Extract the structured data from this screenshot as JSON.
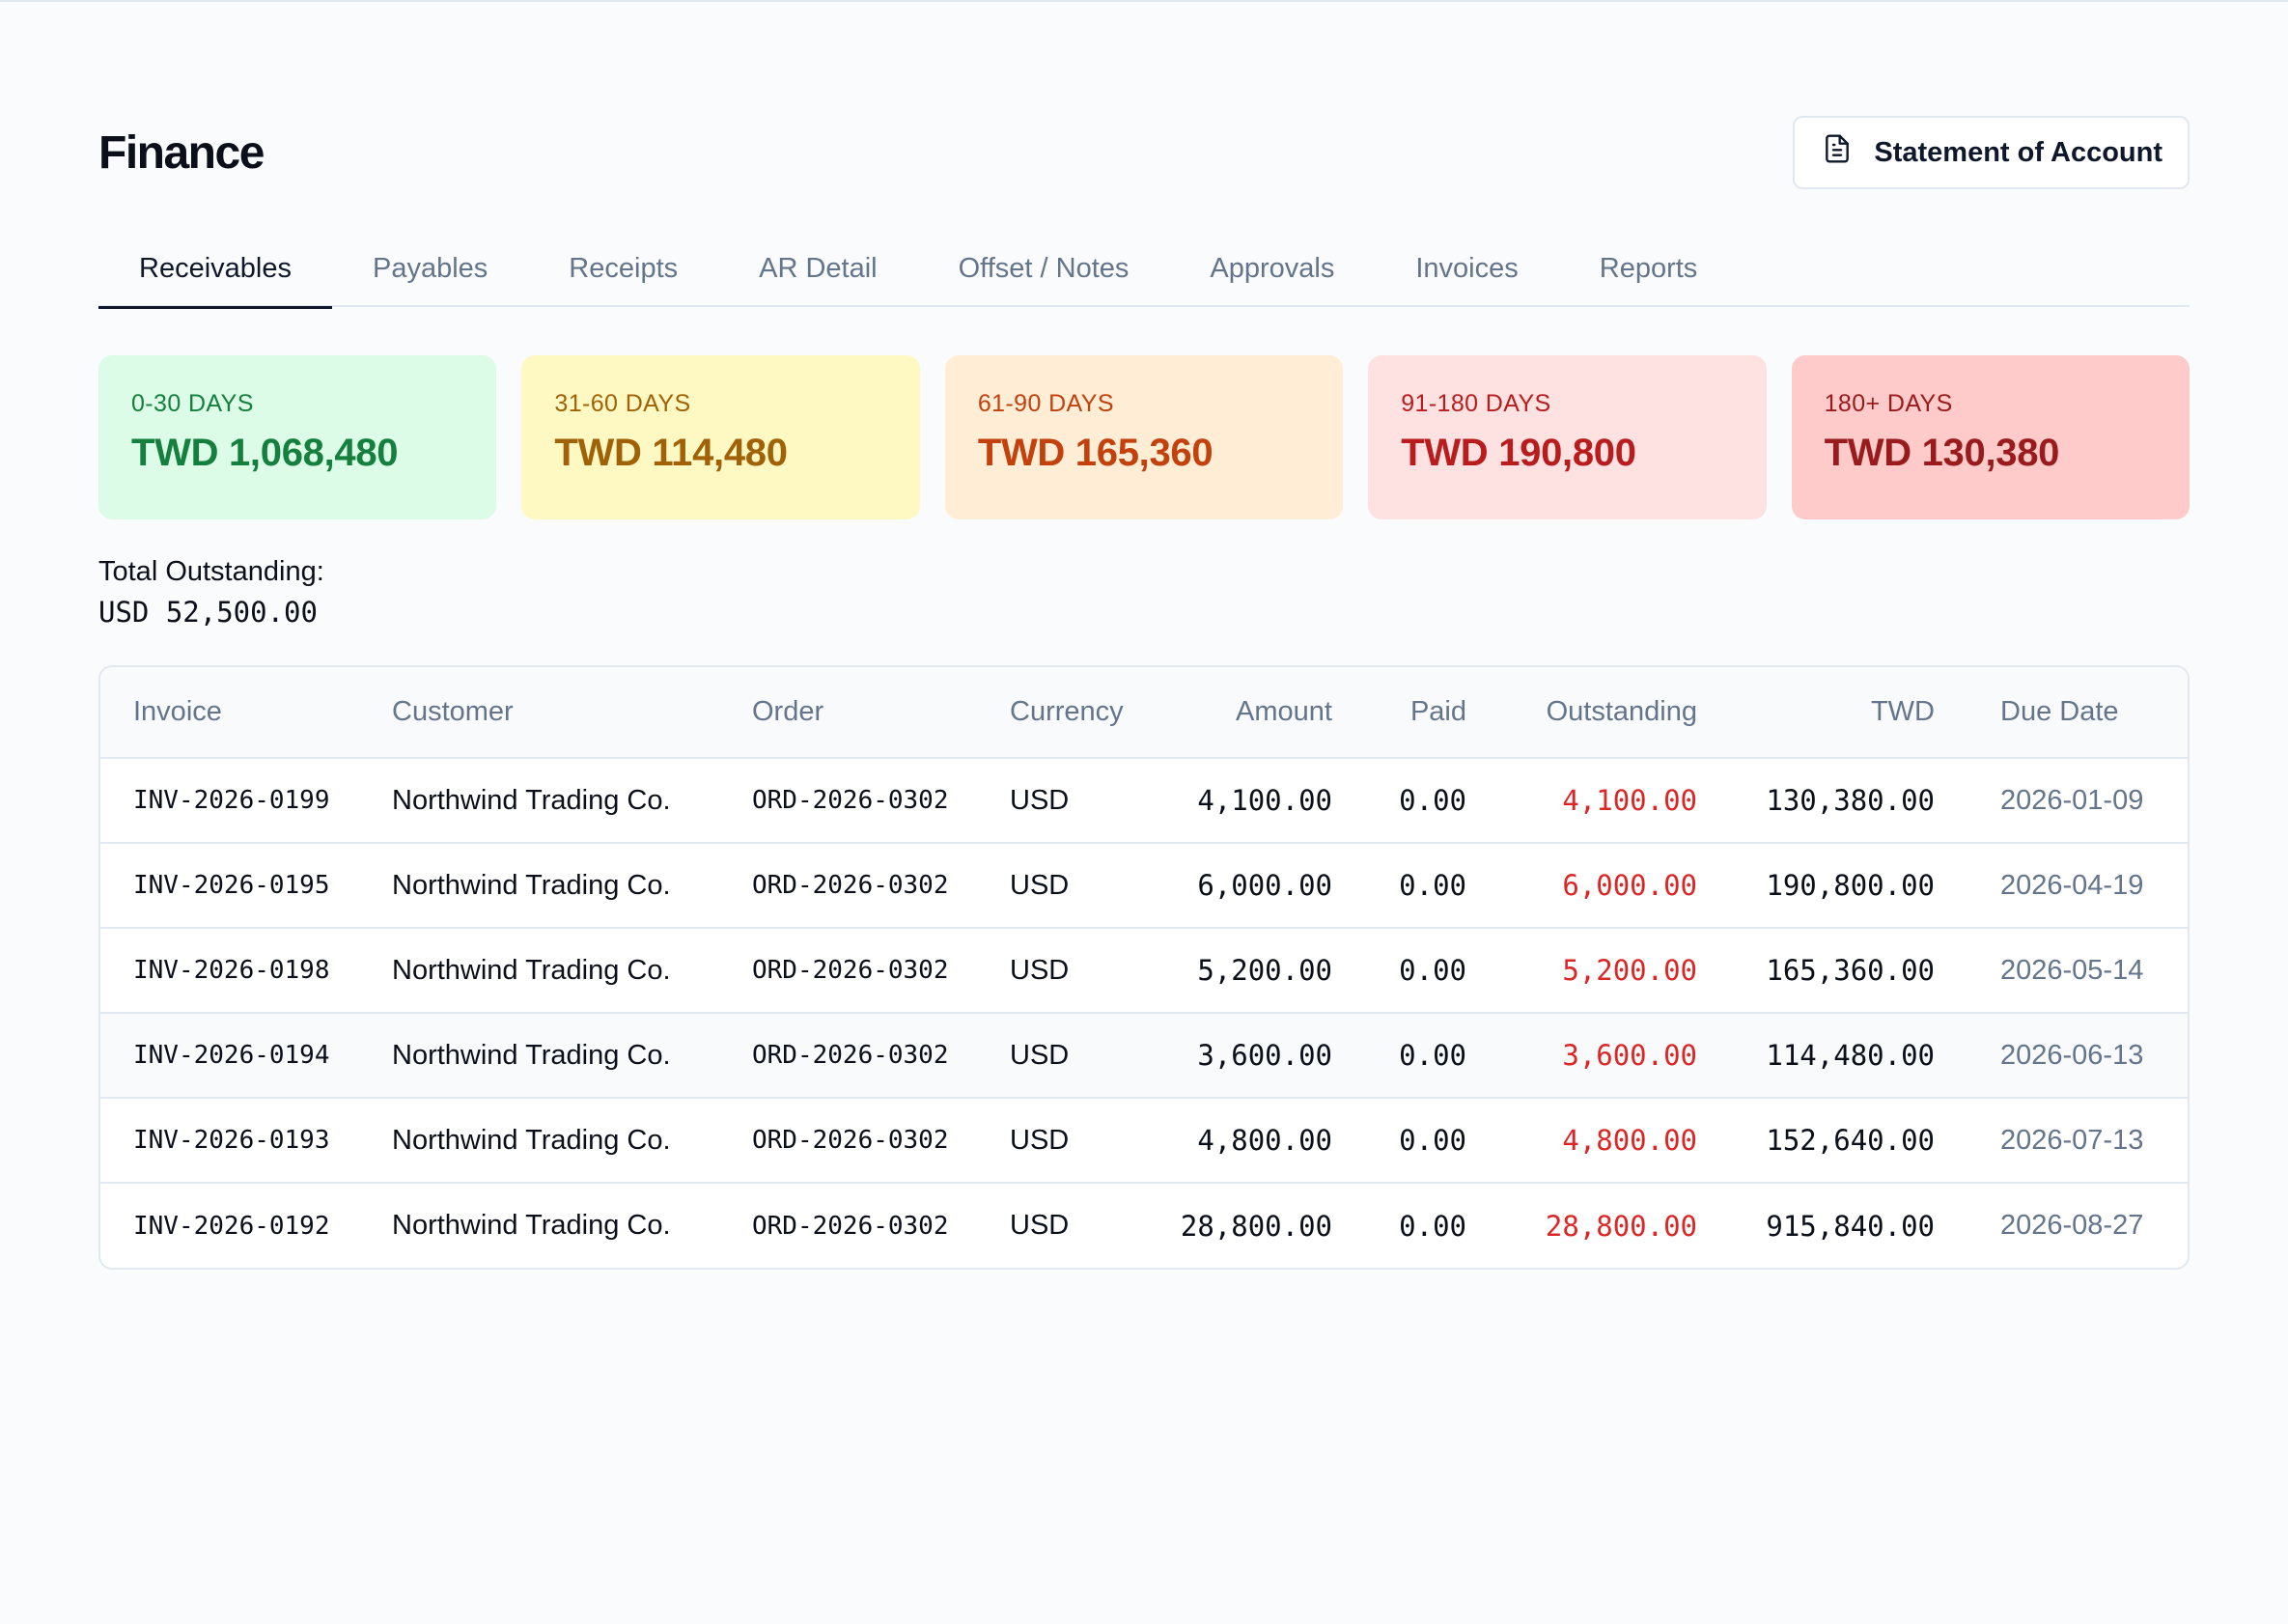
{
  "page": {
    "title": "Finance"
  },
  "actions": {
    "statement_label": "Statement of Account"
  },
  "tabs": [
    {
      "label": "Receivables",
      "active": true
    },
    {
      "label": "Payables"
    },
    {
      "label": "Receipts"
    },
    {
      "label": "AR Detail"
    },
    {
      "label": "Offset / Notes"
    },
    {
      "label": "Approvals"
    },
    {
      "label": "Invoices"
    },
    {
      "label": "Reports"
    }
  ],
  "aging": [
    {
      "label": "0-30 DAYS",
      "value": "TWD 1,068,480",
      "bg": "#dcfce7",
      "fg": "#15803d"
    },
    {
      "label": "31-60 DAYS",
      "value": "TWD 114,480",
      "bg": "#fef9c3",
      "fg": "#a16207"
    },
    {
      "label": "61-90 DAYS",
      "value": "TWD 165,360",
      "bg": "#ffedd5",
      "fg": "#c2410c"
    },
    {
      "label": "91-180 DAYS",
      "value": "TWD 190,800",
      "bg": "#fee2e2",
      "fg": "#b91c1c"
    },
    {
      "label": "180+ DAYS",
      "value": "TWD 130,380",
      "bg": "#fecaca",
      "fg": "#991b1b"
    }
  ],
  "totals": {
    "label": "Total Outstanding:",
    "value": "USD 52,500.00"
  },
  "table": {
    "columns": [
      "Invoice",
      "Customer",
      "Order",
      "Currency",
      "Amount",
      "Paid",
      "Outstanding",
      "TWD",
      "Due Date"
    ],
    "rows": [
      {
        "invoice": "INV-2026-0199",
        "customer": "Northwind Trading Co.",
        "order": "ORD-2026-0302",
        "currency": "USD",
        "amount": "4,100.00",
        "paid": "0.00",
        "outstanding": "4,100.00",
        "twd": "130,380.00",
        "due": "2026-01-09"
      },
      {
        "invoice": "INV-2026-0195",
        "customer": "Northwind Trading Co.",
        "order": "ORD-2026-0302",
        "currency": "USD",
        "amount": "6,000.00",
        "paid": "0.00",
        "outstanding": "6,000.00",
        "twd": "190,800.00",
        "due": "2026-04-19"
      },
      {
        "invoice": "INV-2026-0198",
        "customer": "Northwind Trading Co.",
        "order": "ORD-2026-0302",
        "currency": "USD",
        "amount": "5,200.00",
        "paid": "0.00",
        "outstanding": "5,200.00",
        "twd": "165,360.00",
        "due": "2026-05-14"
      },
      {
        "invoice": "INV-2026-0194",
        "customer": "Northwind Trading Co.",
        "order": "ORD-2026-0302",
        "currency": "USD",
        "amount": "3,600.00",
        "paid": "0.00",
        "outstanding": "3,600.00",
        "twd": "114,480.00",
        "due": "2026-06-13"
      },
      {
        "invoice": "INV-2026-0193",
        "customer": "Northwind Trading Co.",
        "order": "ORD-2026-0302",
        "currency": "USD",
        "amount": "4,800.00",
        "paid": "0.00",
        "outstanding": "4,800.00",
        "twd": "152,640.00",
        "due": "2026-07-13"
      },
      {
        "invoice": "INV-2026-0192",
        "customer": "Northwind Trading Co.",
        "order": "ORD-2026-0302",
        "currency": "USD",
        "amount": "28,800.00",
        "paid": "0.00",
        "outstanding": "28,800.00",
        "twd": "915,840.00",
        "due": "2026-08-27"
      }
    ]
  },
  "icons": {
    "statement": "document-icon"
  }
}
